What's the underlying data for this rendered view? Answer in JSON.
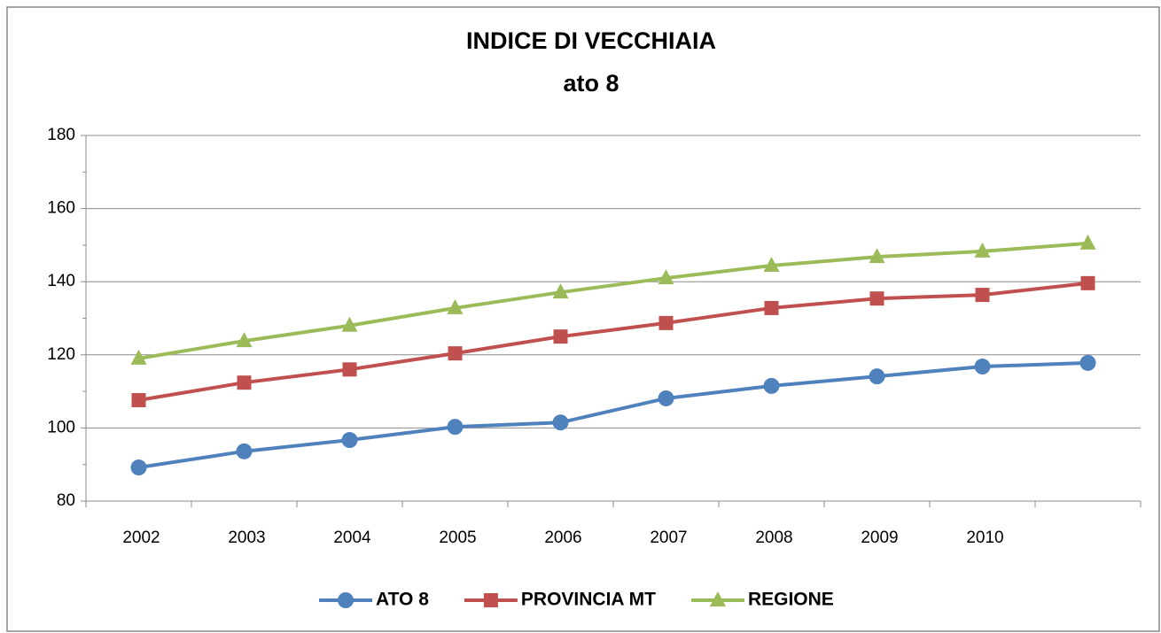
{
  "chart_data": {
    "type": "line",
    "title": "INDICE DI VECCHIAIA",
    "subtitle": "ato 8",
    "categories": [
      "2002",
      "2003",
      "2004",
      "2005",
      "2006",
      "2007",
      "2008",
      "2009",
      "2010",
      null
    ],
    "series": [
      {
        "name": "ATO 8",
        "color": "#4f81bd",
        "marker": "circle",
        "values": [
          89.2,
          93.6,
          96.7,
          100.3,
          101.5,
          108.1,
          111.5,
          114.1,
          116.8,
          117.8
        ]
      },
      {
        "name": "PROVINCIA MT",
        "color": "#c0504d",
        "marker": "square",
        "values": [
          107.6,
          112.4,
          116,
          120.4,
          125,
          128.7,
          132.8,
          135.4,
          136.4,
          139.6
        ]
      },
      {
        "name": "REGIONE",
        "color": "#9bbb59",
        "marker": "triangle",
        "values": [
          119,
          123.8,
          128,
          132.8,
          137.1,
          141,
          144.4,
          146.8,
          148.3,
          150.5
        ]
      }
    ],
    "ylim": [
      80,
      180
    ],
    "yticks": [
      80,
      100,
      120,
      140,
      160,
      180
    ],
    "grid": true,
    "legend": "bottom"
  }
}
